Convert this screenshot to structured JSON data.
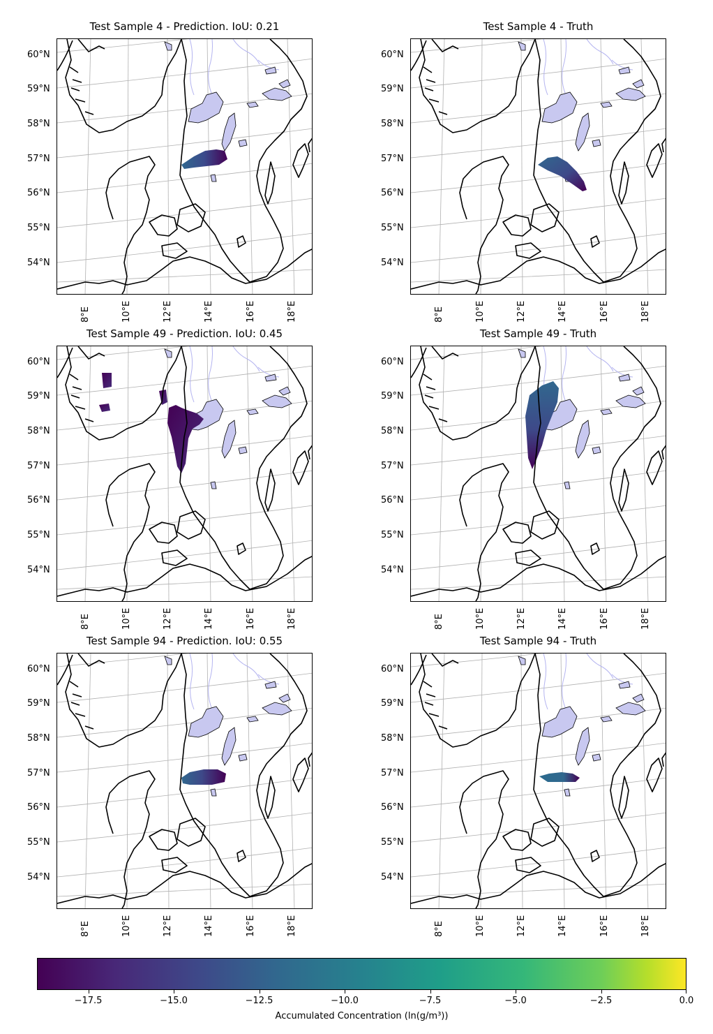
{
  "panels": [
    {
      "title": "Test Sample 4 - Prediction. IoU: 0.21",
      "kind": "prediction",
      "plume": "s4pred"
    },
    {
      "title": "Test Sample 4 - Truth",
      "kind": "truth",
      "plume": "s4truth"
    },
    {
      "title": "Test Sample 49 - Prediction. IoU: 0.45",
      "kind": "prediction",
      "plume": "s49pred"
    },
    {
      "title": "Test Sample 49 - Truth",
      "kind": "truth",
      "plume": "s49truth"
    },
    {
      "title": "Test Sample 94 - Prediction. IoU: 0.55",
      "kind": "prediction",
      "plume": "s94pred"
    },
    {
      "title": "Test Sample 94 - Truth",
      "kind": "truth",
      "plume": "s94truth"
    }
  ],
  "lat_labels": [
    "60°N",
    "59°N",
    "58°N",
    "57°N",
    "56°N",
    "55°N",
    "54°N"
  ],
  "lon_labels": [
    "8°E",
    "10°E",
    "12°E",
    "14°E",
    "16°E",
    "18°E"
  ],
  "colorbar": {
    "label": "Accumulated Concentration (ln(g/m³))",
    "min": -19.0,
    "max": 0.0,
    "ticks": [
      -17.5,
      -15.0,
      -12.5,
      -10.0,
      -7.5,
      -5.0,
      -2.5,
      0.0
    ],
    "tick_labels": [
      "−17.5",
      "−15.0",
      "−12.5",
      "−10.0",
      "−7.5",
      "−5.0",
      "−2.5",
      "0.0"
    ],
    "colormap": "viridis"
  },
  "colors": {
    "lake_fill": "#c8c8f0",
    "river": "#b4b4f0",
    "gridline": "#b0b0b0",
    "plume_low": "#440154",
    "plume_mid": "#31688e"
  }
}
